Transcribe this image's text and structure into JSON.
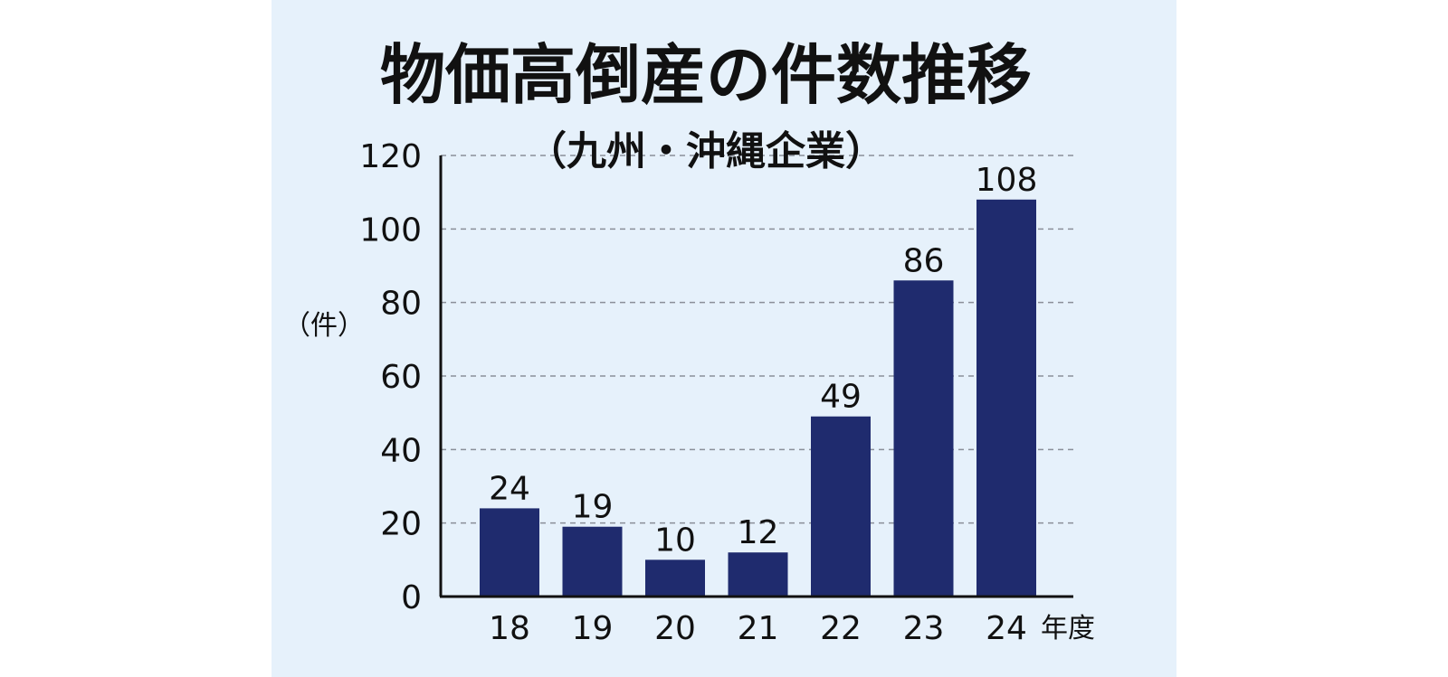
{
  "chart_data": {
    "type": "bar",
    "title": "物価高倒産の件数推移",
    "subtitle": "（九州・沖縄企業）",
    "ylabel": "（件）",
    "xlabel": "年度",
    "categories": [
      "18",
      "19",
      "20",
      "21",
      "22",
      "23",
      "24"
    ],
    "values": [
      24,
      19,
      10,
      12,
      49,
      86,
      108
    ],
    "data_labels": [
      "24",
      "19",
      "10",
      "12",
      "49",
      "86",
      "108"
    ],
    "ylim": [
      0,
      120
    ],
    "yticks": [
      "0",
      "20",
      "40",
      "60",
      "80",
      "100",
      "120"
    ],
    "grid": true,
    "colors": {
      "bar": "#1f2b6e",
      "background": "#e6f1fb",
      "grid": "#8a8f99",
      "axis": "#111111"
    }
  }
}
